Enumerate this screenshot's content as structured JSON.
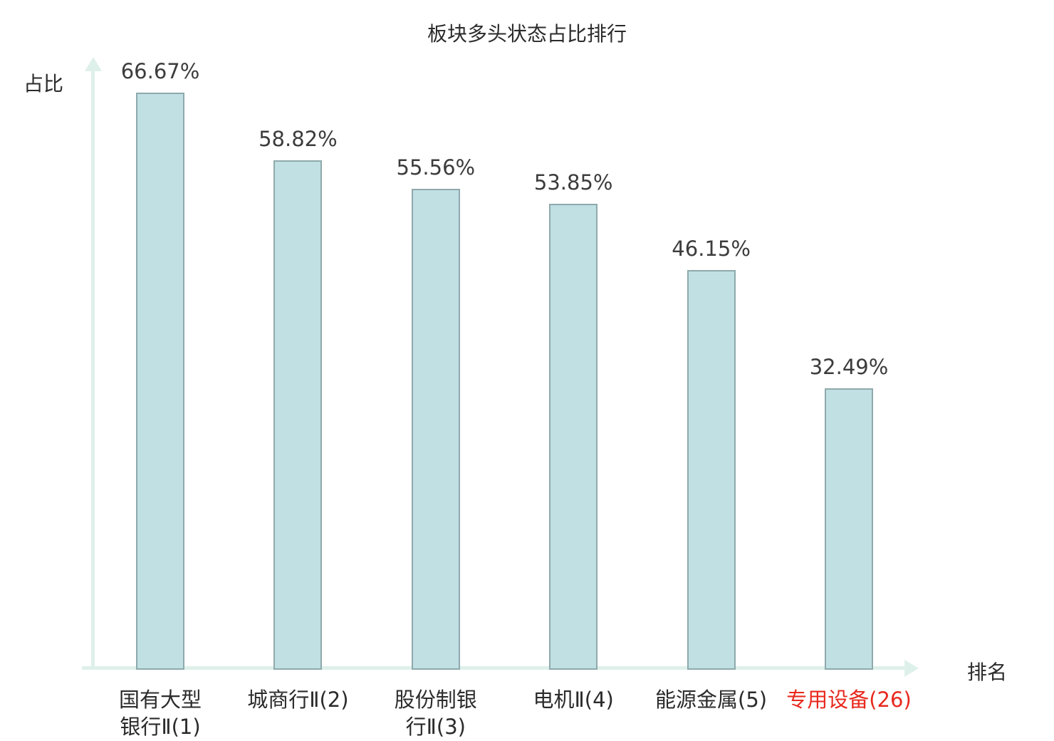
{
  "title": "板块多头状态占比排行",
  "y_axis_label": "占比",
  "x_axis_label": "排名",
  "colors": {
    "bar_fill": "#c0e0e3",
    "bar_border": "#8fa9ac",
    "axis": "#def0ea",
    "text": "#2b2b2b",
    "value_text": "#3c3c3c",
    "highlight_text": "#e8291e"
  },
  "chart_data": {
    "type": "bar",
    "title": "板块多头状态占比排行",
    "xlabel": "排名",
    "ylabel": "占比",
    "categories": [
      "国有大型\n银行Ⅱ(1)",
      "城商行Ⅱ(2)",
      "股份制银\n行Ⅱ(3)",
      "电机Ⅱ(4)",
      "能源金属(5)",
      "专用设备(26)"
    ],
    "values": [
      66.67,
      58.82,
      55.56,
      53.85,
      46.15,
      32.49
    ],
    "value_labels": [
      "66.67%",
      "58.82%",
      "55.56%",
      "53.85%",
      "46.15%",
      "32.49%"
    ],
    "highlight_category_index": 5,
    "ylim": [
      0,
      70
    ],
    "grid": false,
    "legend": false
  }
}
